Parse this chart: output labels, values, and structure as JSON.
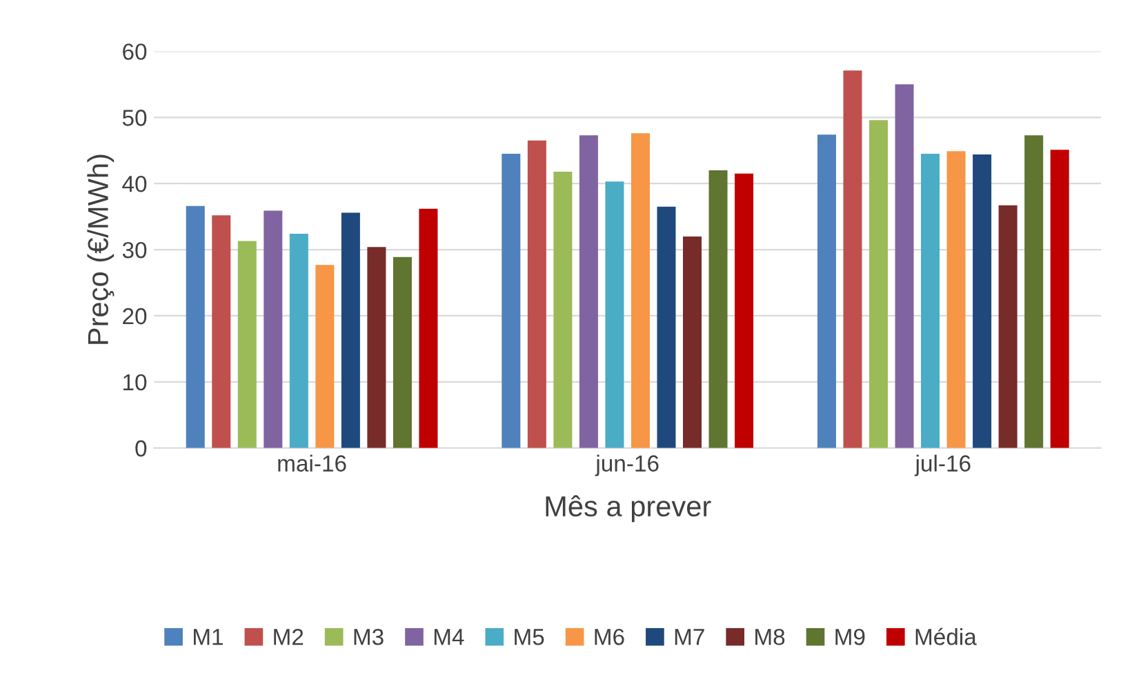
{
  "chart_data": {
    "type": "bar",
    "xlabel": "Mês a prever",
    "ylabel": "Preço (€/MWh)",
    "categories": [
      "mai-16",
      "jun-16",
      "jul-16"
    ],
    "series": [
      {
        "name": "M1",
        "color": "#4f81bd",
        "values": [
          36.6,
          44.5,
          47.4
        ]
      },
      {
        "name": "M2",
        "color": "#c0504d",
        "values": [
          35.2,
          46.5,
          57.1
        ]
      },
      {
        "name": "M3",
        "color": "#9bbb59",
        "values": [
          31.3,
          41.8,
          49.6
        ]
      },
      {
        "name": "M4",
        "color": "#8064a2",
        "values": [
          35.9,
          47.3,
          55.0
        ]
      },
      {
        "name": "M5",
        "color": "#4bacc6",
        "values": [
          32.4,
          40.3,
          44.5
        ]
      },
      {
        "name": "M6",
        "color": "#f79646",
        "values": [
          27.7,
          47.6,
          44.9
        ]
      },
      {
        "name": "M7",
        "color": "#1f497d",
        "values": [
          35.6,
          36.5,
          44.4
        ]
      },
      {
        "name": "M8",
        "color": "#772c2a",
        "values": [
          30.4,
          32.0,
          36.7
        ]
      },
      {
        "name": "M9",
        "color": "#5f7530",
        "values": [
          28.9,
          42.0,
          47.3
        ]
      },
      {
        "name": "Média",
        "color": "#c00000",
        "values": [
          36.2,
          41.5,
          45.1
        ]
      }
    ],
    "ylim": [
      0,
      60
    ],
    "yticks": [
      0,
      10,
      20,
      30,
      40,
      50,
      60
    ],
    "grid": "y",
    "legend": "bottom"
  }
}
